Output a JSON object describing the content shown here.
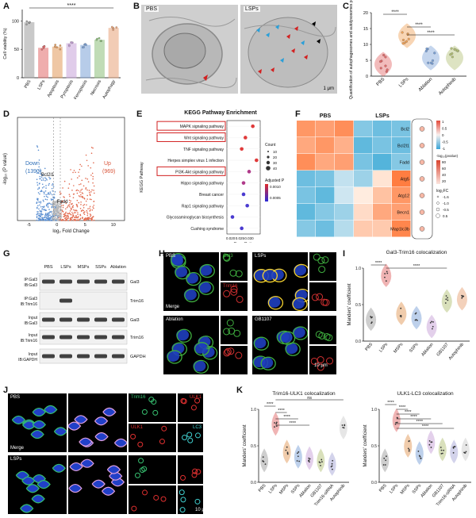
{
  "panel_letters": [
    "A",
    "B",
    "C",
    "D",
    "E",
    "F",
    "G",
    "H",
    "I",
    "J",
    "K"
  ],
  "A": {
    "ylabel": "Cell viability (%)",
    "categories": [
      "PBS",
      "LSPs",
      "Apoptosis",
      "Pyroptosis",
      "Ferroptosis",
      "Necrosis",
      "Autophagy"
    ],
    "values": [
      97,
      52,
      54,
      60,
      57,
      66,
      87
    ],
    "sig": "****",
    "colors": [
      "#9e9e9e",
      "#e36b6b",
      "#e39b5b",
      "#c8a3d9",
      "#7da3d8",
      "#8ec07c",
      "#e8a47a"
    ]
  },
  "B": {
    "left_label": "PBS",
    "right_label": "LSPs",
    "scale": "1 μm"
  },
  "C": {
    "ylabel": "Quantification of autophagosomes and autolysosomes per cell",
    "categories": [
      "PBS",
      "LSPs",
      "Ablation",
      "Autophinib"
    ],
    "values": [
      4,
      13,
      6,
      6
    ],
    "sig": [
      "****",
      "****",
      "****"
    ],
    "colors": [
      "#e36b6b",
      "#f0a35a",
      "#7da3d8",
      "#b5c27a"
    ]
  },
  "D": {
    "xlabel": "log₂ Fold Change",
    "ylabel": "-log₁₀ (P value)",
    "down_label": "Down",
    "down_count": "(1390)",
    "up_label": "Up",
    "up_count": "(969)",
    "gene1": "Bcl2l1",
    "gene2": "Fadd",
    "xticks": [
      "-5",
      "0",
      "5",
      "10"
    ]
  },
  "E": {
    "title": "KEGG Pathway Enrichment",
    "ylabel": "KEGG Pathway",
    "xlabel": "Gene Ratio",
    "pathways": [
      "MAPK signaling pathway",
      "Wnt signaling pathway",
      "TNF signaling pathway",
      "Herpes simplex virus 1 infection",
      "PI3K-Akt signaling pathway",
      "Hippo signaling pathway",
      "Breast cancer",
      "Rap1 signaling pathway",
      "Glycosaminoglycan biosynthesis",
      "Cushing syndrome"
    ],
    "gene_ratio": [
      0.032,
      0.028,
      0.026,
      0.034,
      0.03,
      0.027,
      0.027,
      0.029,
      0.021,
      0.026
    ],
    "count_title": "Count",
    "counts": [
      "10",
      "20",
      "30",
      "40"
    ],
    "p_title": "Adjusted P",
    "p_ticks": [
      "0.0010",
      "0.0005"
    ],
    "xticks": [
      "0.020",
      "0.025",
      "0.030"
    ]
  },
  "F": {
    "group1": "PBS",
    "group2": "LSPs",
    "genes": [
      "Bcl2",
      "Bcl2l1",
      "Fadd",
      "Atg5",
      "Atg12",
      "Becn1",
      "Map1lc3b"
    ],
    "matrix": [
      [
        1.1,
        1.0,
        1.2,
        -0.8,
        -1.0,
        -0.9
      ],
      [
        0.9,
        1.1,
        0.8,
        -1.1,
        -0.9,
        -1.0
      ],
      [
        1.2,
        0.9,
        1.0,
        -0.9,
        -1.2,
        -0.8
      ],
      [
        -1.0,
        -0.9,
        -0.3,
        -0.6,
        0.2,
        1.4
      ],
      [
        -0.9,
        -1.1,
        -0.2,
        0.1,
        0.6,
        1.1
      ],
      [
        -1.1,
        -0.8,
        -0.6,
        0.3,
        0.9,
        1.0
      ],
      [
        -0.8,
        -1.0,
        -0.4,
        0.5,
        0.5,
        1.3
      ]
    ],
    "scale_ticks": [
      "1",
      "0.5",
      "0",
      "-0.5",
      "-1"
    ],
    "p_title": "-log₁₀(pvalue)",
    "p_ticks": [
      "80",
      "60",
      "40",
      "20"
    ],
    "lfc_title": "log₂FC",
    "lfc_ticks": [
      "-1.6",
      "-1.0",
      "-0.5",
      "0.5"
    ]
  },
  "G": {
    "columns": [
      "PBS",
      "LSPs",
      "MSPs",
      "SSPs",
      "Ablation"
    ],
    "rows": [
      {
        "label1": "IP:Gal3",
        "label2": "IB:Gal3",
        "target": "Gal3"
      },
      {
        "label1": "IP:Gal3",
        "label2": "IB:Trim16",
        "target": "Trim16"
      },
      {
        "label1": "Input",
        "label2": "IB:Gal3",
        "target": "Gal3"
      },
      {
        "label1": "Input",
        "label2": "IB:Trim16",
        "target": "Trim16"
      },
      {
        "label1": "Input",
        "label2": "IB:GAPDH",
        "target": "GAPDH"
      }
    ]
  },
  "H": {
    "tiles": [
      "PBS",
      "LSPs",
      "Ablation",
      "GB1107"
    ],
    "ch1": "Gal3",
    "ch2": "Trim16",
    "merge": "Merge",
    "scale": "10 μm"
  },
  "I": {
    "title": "Gal3-Trim16 colocalization",
    "ylabel": "Manders' coefficient",
    "categories": [
      "PBS",
      "LSPs",
      "MSPs",
      "SSPs",
      "Ablation",
      "GB1107",
      "Autophinib"
    ],
    "values": [
      0.3,
      0.9,
      0.38,
      0.32,
      0.2,
      0.55,
      0.58
    ],
    "sig": [
      "****",
      "****"
    ],
    "colors": [
      "#9e9e9e",
      "#e36b6b",
      "#e39b5b",
      "#7da3d8",
      "#c8a3d9",
      "#b5c27a",
      "#e8a47a"
    ]
  },
  "J": {
    "tiles": [
      "PBS",
      "LSPs"
    ],
    "ch1": "Trim16",
    "ch2": "ULK1",
    "ch3": "LC3",
    "merge": "Merge",
    "scale": "10 μm"
  },
  "K1": {
    "title": "Trim16-ULK1 colocalization",
    "ylabel": "Manders' coefficient",
    "categories": [
      "PBS",
      "LSPs",
      "MSPs",
      "SSPs",
      "Ablation",
      "GB1107",
      "Trim16-siRNA",
      "Autophinib"
    ],
    "values": [
      0.3,
      0.8,
      0.42,
      0.35,
      0.33,
      0.3,
      0.25,
      0.75
    ],
    "sig": [
      "ns",
      "****",
      "****",
      "****",
      "****"
    ],
    "colors": [
      "#9e9e9e",
      "#e36b6b",
      "#e39b5b",
      "#7da3d8",
      "#c8a3d9",
      "#b5c27a",
      "#a9a9d9",
      "#cfcfcf"
    ]
  },
  "K2": {
    "title": "ULK1-LC3 colocalization",
    "ylabel": "Manders' coefficient",
    "categories": [
      "PBS",
      "LSPs",
      "MSPs",
      "SSPs",
      "Ablation",
      "GB1107",
      "Trim16-siRNA",
      "Autophinib"
    ],
    "values": [
      0.3,
      0.85,
      0.5,
      0.4,
      0.55,
      0.45,
      0.42,
      0.45
    ],
    "sig": [
      "****",
      "****",
      "****",
      "****",
      "****",
      "****"
    ],
    "colors": [
      "#9e9e9e",
      "#e36b6b",
      "#e39b5b",
      "#7da3d8",
      "#c8a3d9",
      "#b5c27a",
      "#a9a9d9",
      "#cfcfcf"
    ]
  }
}
